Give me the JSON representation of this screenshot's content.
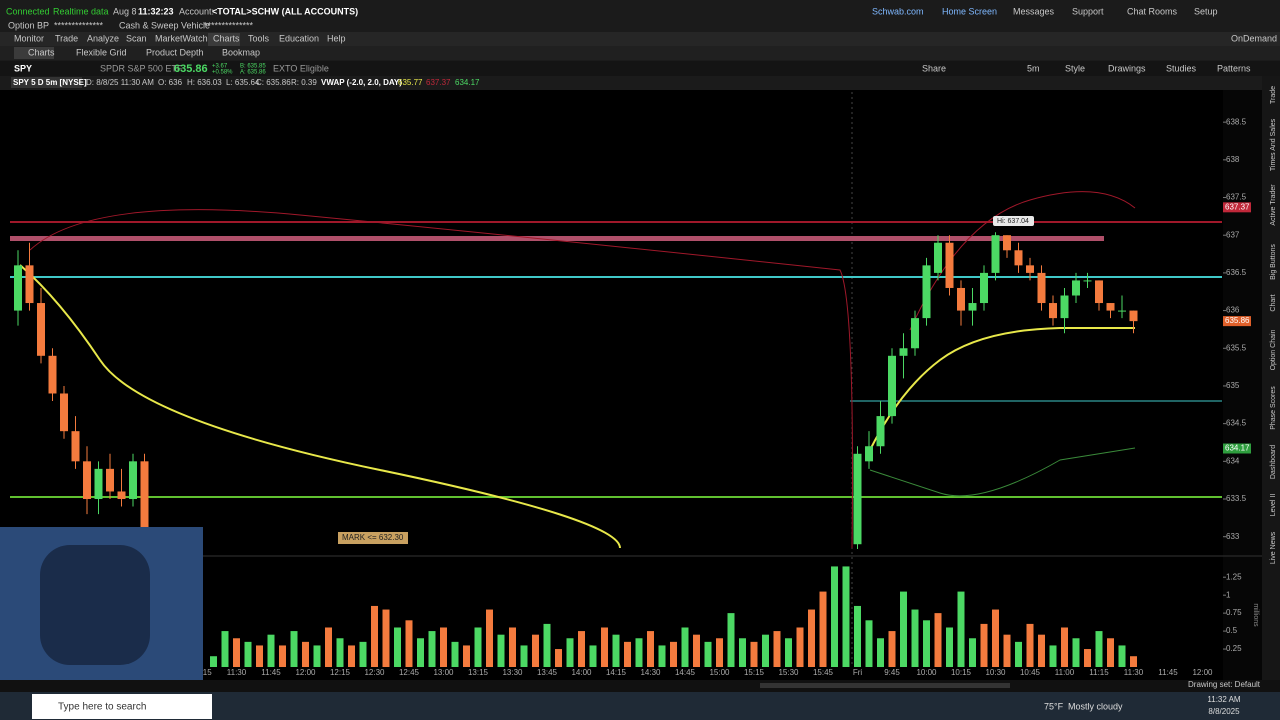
{
  "status_bar": {
    "connection": "Connected",
    "data_feed": "Realtime data",
    "date": "Aug 8",
    "time": "11:32:23",
    "account_label": "Account:",
    "account": "<TOTAL>SCHW (ALL ACCOUNTS)",
    "links": [
      "Schwab.com",
      "Home Screen",
      "Messages",
      "Support",
      "Chat Rooms",
      "Setup"
    ]
  },
  "account_bar": {
    "option_bp_label": "Option BP",
    "option_bp": "**************",
    "cash_label": "Cash & Sweep Vehicle",
    "cash": "**************"
  },
  "menu": {
    "items": [
      "Monitor",
      "Trade",
      "Analyze",
      "Scan",
      "MarketWatch",
      "Charts",
      "Tools",
      "Education",
      "Help"
    ],
    "on_demand": "OnDemand"
  },
  "tabs": [
    "Charts",
    "Flexible Grid",
    "Product Depth",
    "Bookmap"
  ],
  "quote": {
    "symbol": "SPY",
    "description": "SPDR S&P 500 ETF",
    "last": "635.86",
    "change": "+3.67",
    "change_pct": "+0.58%",
    "bid": "B: 635.85",
    "ask": "A: 635.86",
    "badge": "EXTO Eligible"
  },
  "chart_tools": [
    "Share",
    "5m",
    "Style",
    "Drawings",
    "Studies",
    "Patterns"
  ],
  "chart_header": {
    "title": "SPY 5 D 5m [NYSE]",
    "date": "D: 8/8/25 11:30 AM",
    "open": "O: 636",
    "high": "H: 636.03",
    "low": "L: 635.64",
    "close": "C: 635.86",
    "range": "R: 0.39",
    "study": "VWAP (-2.0, 2.0, DAY)",
    "vwap": "635.77",
    "upper": "637.37",
    "lower": "634.17"
  },
  "chart_data": {
    "type": "candlestick",
    "up_color": "#4cd964",
    "down_color": "#f47b3e",
    "categories": [
      null,
      null,
      null,
      null,
      null,
      null,
      null,
      null,
      null,
      null,
      null,
      null,
      null,
      null,
      null,
      null,
      "11:15",
      null,
      null,
      "11:30",
      null,
      null,
      "11:45",
      null,
      null,
      "12:00",
      null,
      null,
      "12:15",
      null,
      null,
      "12:30",
      null,
      null,
      "12:45",
      null,
      null,
      "13:00",
      null,
      null,
      "13:15",
      null,
      null,
      "13:30",
      null,
      null,
      "13:45",
      null,
      null,
      "14:00",
      null,
      null,
      "14:15",
      null,
      null,
      "14:30",
      null,
      null,
      "14:45",
      null,
      null,
      "15:00",
      null,
      null,
      "15:15",
      null,
      null,
      "15:30",
      null,
      null,
      "15:45",
      null,
      null,
      "Fri",
      null,
      null,
      "9:45",
      null,
      null,
      "10:00",
      null,
      null,
      "10:15",
      null,
      null,
      "10:30",
      null,
      null,
      "10:45",
      null,
      null,
      "11:00",
      null,
      null,
      "11:15",
      null,
      null,
      "11:30",
      null,
      null,
      "11:45",
      null,
      null,
      "12:00"
    ],
    "open": [
      636.0,
      636.6,
      636.1,
      635.4,
      634.9,
      634.4,
      634.0,
      633.5,
      633.9,
      633.6,
      633.5,
      634.0,
      null,
      null,
      null,
      null,
      null,
      null,
      null,
      null,
      null,
      null,
      null,
      null,
      null,
      null,
      null,
      null,
      null,
      null,
      null,
      null,
      null,
      null,
      null,
      null,
      null,
      null,
      null,
      null,
      null,
      null,
      null,
      null,
      null,
      null,
      null,
      null,
      null,
      null,
      null,
      null,
      null,
      null,
      null,
      null,
      null,
      null,
      null,
      null,
      null,
      null,
      null,
      null,
      null,
      null,
      null,
      null,
      null,
      null,
      null,
      null,
      null,
      632.9,
      634.0,
      634.2,
      634.6,
      635.4,
      635.5,
      635.9,
      636.5,
      636.9,
      636.3,
      636.0,
      636.1,
      636.5,
      637.0,
      636.8,
      636.6,
      636.5,
      636.1,
      635.9,
      636.2,
      636.4,
      636.4,
      636.1,
      636.0,
      636.0,
      null,
      null,
      null,
      null,
      null,
      null
    ],
    "high": [
      636.8,
      636.9,
      636.3,
      635.5,
      635.0,
      634.6,
      634.2,
      634.0,
      634.1,
      633.9,
      634.1,
      634.1,
      null,
      null,
      null,
      null,
      null,
      null,
      null,
      null,
      null,
      null,
      null,
      null,
      null,
      null,
      null,
      null,
      null,
      null,
      null,
      null,
      null,
      null,
      null,
      null,
      null,
      null,
      null,
      null,
      null,
      null,
      null,
      null,
      null,
      null,
      null,
      null,
      null,
      null,
      null,
      null,
      null,
      null,
      null,
      null,
      null,
      null,
      null,
      null,
      null,
      null,
      null,
      null,
      null,
      null,
      null,
      null,
      null,
      null,
      null,
      null,
      null,
      634.2,
      634.4,
      634.8,
      635.5,
      635.7,
      636.0,
      636.7,
      637.0,
      637.0,
      636.4,
      636.3,
      636.6,
      637.04,
      637.0,
      636.9,
      636.7,
      636.6,
      636.2,
      636.3,
      636.5,
      636.5,
      636.4,
      636.1,
      636.2,
      636.0,
      null,
      null,
      null,
      null,
      null,
      null
    ],
    "low": [
      635.8,
      636.0,
      635.3,
      634.8,
      634.3,
      633.9,
      633.3,
      633.3,
      633.5,
      633.4,
      633.4,
      632.9,
      null,
      null,
      null,
      null,
      null,
      null,
      null,
      null,
      null,
      null,
      null,
      null,
      null,
      null,
      null,
      null,
      null,
      null,
      null,
      null,
      null,
      null,
      null,
      null,
      null,
      null,
      null,
      null,
      null,
      null,
      null,
      null,
      null,
      null,
      null,
      null,
      null,
      null,
      null,
      null,
      null,
      null,
      null,
      null,
      null,
      null,
      null,
      null,
      null,
      null,
      null,
      null,
      null,
      null,
      null,
      null,
      null,
      null,
      null,
      null,
      null,
      632.5,
      633.9,
      634.1,
      634.5,
      635.1,
      635.4,
      635.8,
      636.4,
      636.2,
      635.8,
      635.8,
      636.0,
      636.4,
      636.7,
      636.5,
      636.4,
      636.0,
      635.8,
      635.7,
      636.1,
      636.3,
      636.0,
      635.9,
      635.9,
      635.7,
      null,
      null,
      null,
      null,
      null,
      null
    ],
    "close": [
      636.6,
      636.1,
      635.4,
      634.9,
      634.4,
      634.0,
      633.5,
      633.9,
      633.6,
      633.5,
      634.0,
      633.0,
      null,
      null,
      null,
      null,
      null,
      null,
      null,
      null,
      null,
      null,
      null,
      null,
      null,
      null,
      null,
      null,
      null,
      null,
      null,
      null,
      null,
      null,
      null,
      null,
      null,
      null,
      null,
      null,
      null,
      null,
      null,
      null,
      null,
      null,
      null,
      null,
      null,
      null,
      null,
      null,
      null,
      null,
      null,
      null,
      null,
      null,
      null,
      null,
      null,
      null,
      null,
      null,
      null,
      null,
      null,
      null,
      null,
      null,
      null,
      null,
      null,
      634.1,
      634.2,
      634.6,
      635.4,
      635.5,
      635.9,
      636.6,
      636.9,
      636.3,
      636.0,
      636.1,
      636.5,
      637.0,
      636.8,
      636.6,
      636.5,
      636.1,
      635.9,
      636.2,
      636.4,
      636.4,
      636.1,
      636.0,
      636.0,
      635.86,
      null,
      null,
      null,
      null,
      null,
      null
    ],
    "ylim": [
      632.85,
      638.9
    ],
    "yticks": [
      633,
      633.5,
      634,
      634.5,
      635,
      635.5,
      636,
      636.5,
      637,
      637.5,
      638,
      638.5
    ],
    "price_labels": [
      {
        "value": 637.37,
        "color": "#c0283a"
      },
      {
        "value": 635.86,
        "color": "#e0602a"
      },
      {
        "value": 634.17,
        "color": "#2e9e3e"
      }
    ],
    "annotations": {
      "high": "Hi: 637.04",
      "mark": "MARK <= 632.30"
    },
    "volume": {
      "values": [
        null,
        null,
        null,
        null,
        null,
        null,
        null,
        null,
        null,
        null,
        null,
        null,
        null,
        null,
        null,
        null,
        null,
        0.15,
        0.5,
        0.4,
        0.35,
        0.3,
        0.45,
        0.3,
        0.5,
        0.35,
        0.3,
        0.55,
        0.4,
        0.3,
        0.35,
        0.85,
        0.8,
        0.55,
        0.65,
        0.4,
        0.5,
        0.55,
        0.35,
        0.3,
        0.55,
        0.8,
        0.45,
        0.55,
        0.3,
        0.45,
        0.6,
        0.25,
        0.4,
        0.5,
        0.3,
        0.55,
        0.45,
        0.35,
        0.4,
        0.5,
        0.3,
        0.35,
        0.55,
        0.45,
        0.35,
        0.4,
        0.75,
        0.4,
        0.35,
        0.45,
        0.5,
        0.4,
        0.55,
        0.8,
        1.05,
        1.4,
        1.4,
        0.85,
        0.65,
        0.4,
        0.5,
        1.05,
        0.8,
        0.65,
        0.75,
        0.55,
        1.05,
        0.4,
        0.6,
        0.8,
        0.45,
        0.35,
        0.6,
        0.45,
        0.3,
        0.55,
        0.4,
        0.25,
        0.5,
        0.4,
        0.3,
        0.15,
        null,
        null,
        null,
        null,
        null,
        null
      ],
      "colors": [
        null,
        null,
        null,
        null,
        null,
        null,
        null,
        null,
        null,
        null,
        null,
        null,
        null,
        null,
        null,
        null,
        null,
        "#4cd964",
        "#4cd964",
        "#f47b3e",
        "#4cd964",
        "#f47b3e",
        "#4cd964",
        "#f47b3e",
        "#4cd964",
        "#f47b3e",
        "#4cd964",
        "#f47b3e",
        "#4cd964",
        "#f47b3e",
        "#4cd964",
        "#f47b3e",
        "#f47b3e",
        "#4cd964",
        "#f47b3e",
        "#4cd964",
        "#4cd964",
        "#f47b3e",
        "#4cd964",
        "#f47b3e",
        "#4cd964",
        "#f47b3e",
        "#4cd964",
        "#f47b3e",
        "#4cd964",
        "#f47b3e",
        "#4cd964",
        "#f47b3e",
        "#4cd964",
        "#f47b3e",
        "#4cd964",
        "#f47b3e",
        "#4cd964",
        "#f47b3e",
        "#4cd964",
        "#f47b3e",
        "#4cd964",
        "#f47b3e",
        "#4cd964",
        "#f47b3e",
        "#4cd964",
        "#f47b3e",
        "#4cd964",
        "#4cd964",
        "#f47b3e",
        "#4cd964",
        "#f47b3e",
        "#4cd964",
        "#f47b3e",
        "#f47b3e",
        "#f47b3e",
        "#4cd964",
        "#4cd964",
        "#4cd964",
        "#4cd964",
        "#4cd964",
        "#f47b3e",
        "#4cd964",
        "#4cd964",
        "#4cd964",
        "#f47b3e",
        "#4cd964",
        "#4cd964",
        "#4cd964",
        "#f47b3e",
        "#f47b3e",
        "#f47b3e",
        "#4cd964",
        "#f47b3e",
        "#f47b3e",
        "#4cd964",
        "#f47b3e",
        "#4cd964",
        "#f47b3e",
        "#4cd964",
        "#f47b3e",
        "#4cd964",
        "#f47b3e",
        null,
        null,
        null,
        null,
        null,
        null
      ],
      "ylim": [
        0,
        1.42
      ],
      "yticks": [
        0.25,
        0.5,
        0.75,
        1,
        1.25
      ],
      "unit_label": "millions"
    }
  },
  "side_panel": [
    "Trade",
    "Times And Sales",
    "Active Trader",
    "Big Buttons",
    "Chart",
    "Option Chain",
    "Phase Scores",
    "Dashboard",
    "Level II",
    "Live News"
  ],
  "footer": {
    "drawing_set": "Drawing set: Default"
  },
  "taskbar": {
    "search": "Type here to search",
    "temperature": "75°F",
    "weather": "Mostly cloudy",
    "time": "11:32 AM",
    "date": "8/8/2025"
  }
}
